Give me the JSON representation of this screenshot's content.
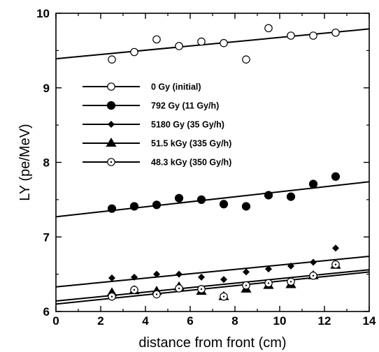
{
  "chart_data": {
    "type": "scatter",
    "xlabel": "distance from front (cm)",
    "ylabel": "LY (pe/MeV)",
    "xlim": [
      0,
      14
    ],
    "ylim": [
      6,
      10
    ],
    "x_ticks": [
      0,
      2,
      4,
      6,
      8,
      10,
      12,
      14
    ],
    "y_ticks": [
      6,
      7,
      8,
      9,
      10
    ],
    "grid": false,
    "legend_position": "center-left",
    "series": [
      {
        "name": "0 Gy (initial)",
        "marker": "open-circle",
        "x": [
          2.5,
          3.5,
          4.5,
          5.5,
          6.5,
          7.5,
          8.5,
          9.5,
          10.5,
          11.5,
          12.5
        ],
        "y": [
          9.38,
          9.48,
          9.65,
          9.56,
          9.62,
          9.6,
          9.38,
          9.8,
          9.7,
          9.7,
          9.74
        ],
        "fit": [
          9.39,
          9.79
        ]
      },
      {
        "name": "792 Gy (11 Gy/h)",
        "marker": "filled-circle",
        "x": [
          2.5,
          3.5,
          4.5,
          5.5,
          6.5,
          7.5,
          8.5,
          9.5,
          10.5,
          11.5,
          12.5
        ],
        "y": [
          7.38,
          7.41,
          7.43,
          7.52,
          7.5,
          7.44,
          7.41,
          7.56,
          7.54,
          7.71,
          7.81
        ],
        "fit": [
          7.27,
          7.74
        ]
      },
      {
        "name": "5180 Gy (35 Gy/h)",
        "marker": "diamond",
        "x": [
          2.5,
          3.5,
          4.5,
          5.5,
          6.5,
          7.5,
          8.5,
          9.5,
          10.5,
          11.5,
          12.5
        ],
        "y": [
          6.45,
          6.46,
          6.5,
          6.5,
          6.46,
          6.43,
          6.53,
          6.57,
          6.61,
          6.66,
          6.85
        ],
        "fit": [
          6.33,
          6.74
        ]
      },
      {
        "name": "51.5 kGy (335 Gy/h)",
        "marker": "triangle",
        "x": [
          2.5,
          3.5,
          4.5,
          5.5,
          6.5,
          7.5,
          8.5,
          9.5,
          10.5,
          11.5,
          12.5
        ],
        "y": [
          6.25,
          6.28,
          6.27,
          6.33,
          6.27,
          6.2,
          6.3,
          6.35,
          6.36,
          6.48,
          6.62
        ],
        "fit": [
          6.1,
          6.53
        ]
      },
      {
        "name": "48.3 kGy (350 Gy/h)",
        "marker": "dotted-circle",
        "x": [
          2.5,
          3.5,
          4.5,
          5.5,
          6.5,
          7.5,
          8.5,
          9.5,
          10.5,
          11.5,
          12.5
        ],
        "y": [
          6.2,
          6.29,
          6.23,
          6.31,
          6.3,
          6.2,
          6.35,
          6.38,
          6.4,
          6.48,
          6.63
        ],
        "fit": [
          6.14,
          6.56
        ]
      }
    ]
  }
}
